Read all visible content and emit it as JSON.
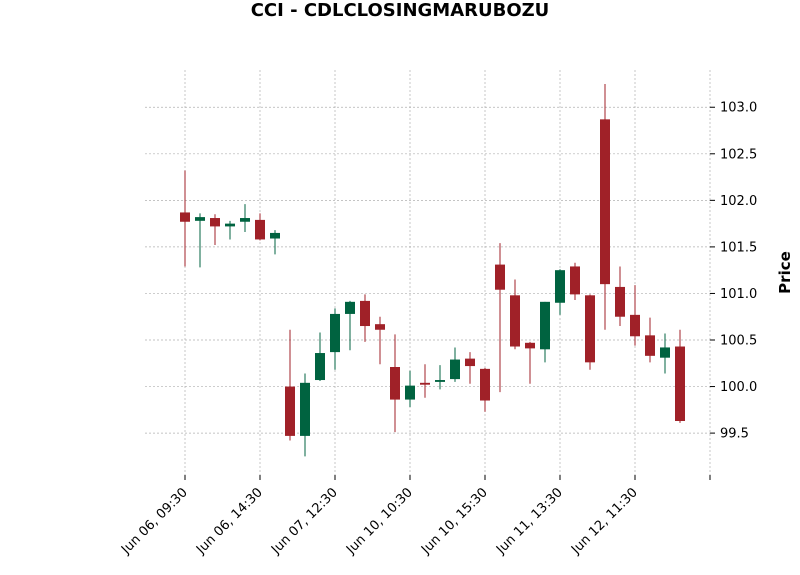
{
  "chart_data": {
    "type": "candlestick",
    "title": "CCI - CDLCLOSINGMARUBOZU",
    "xlabel": "",
    "ylabel": "Price",
    "ylim": [
      99.05,
      103.4
    ],
    "yticks": [
      99.5,
      100.0,
      100.5,
      101.0,
      101.5,
      102.0,
      102.5,
      103.0
    ],
    "ytick_labels": [
      "99.5",
      "100.0",
      "100.5",
      "101.0",
      "101.5",
      "102.0",
      "102.5",
      "103.0"
    ],
    "xtick_positions": [
      0,
      5,
      10,
      15,
      20,
      25,
      30,
      35
    ],
    "xtick_labels": [
      "Jun 06, 09:30",
      "Jun 06, 14:30",
      "Jun 07, 12:30",
      "Jun 10, 10:30",
      "Jun 10, 15:30",
      "Jun 11, 13:30",
      "Jun 12, 11:30",
      ""
    ],
    "grid": true,
    "colors": {
      "up": "#006340",
      "down": "#a02128",
      "grid": "#b0b0b0"
    },
    "candles": [
      {
        "open": 101.87,
        "high": 102.32,
        "low": 101.29,
        "close": 101.77
      },
      {
        "open": 101.78,
        "high": 101.86,
        "low": 101.28,
        "close": 101.82
      },
      {
        "open": 101.81,
        "high": 101.85,
        "low": 101.52,
        "close": 101.72
      },
      {
        "open": 101.72,
        "high": 101.78,
        "low": 101.58,
        "close": 101.75
      },
      {
        "open": 101.77,
        "high": 101.96,
        "low": 101.66,
        "close": 101.81
      },
      {
        "open": 101.79,
        "high": 101.86,
        "low": 101.57,
        "close": 101.58
      },
      {
        "open": 101.59,
        "high": 101.68,
        "low": 101.42,
        "close": 101.65
      },
      {
        "open": 100.0,
        "high": 100.61,
        "low": 99.42,
        "close": 99.47
      },
      {
        "open": 99.47,
        "high": 100.14,
        "low": 99.25,
        "close": 100.04
      },
      {
        "open": 100.07,
        "high": 100.58,
        "low": 100.06,
        "close": 100.36
      },
      {
        "open": 100.37,
        "high": 100.84,
        "low": 100.18,
        "close": 100.78
      },
      {
        "open": 100.78,
        "high": 100.92,
        "low": 100.39,
        "close": 100.91
      },
      {
        "open": 100.92,
        "high": 100.99,
        "low": 100.48,
        "close": 100.65
      },
      {
        "open": 100.67,
        "high": 100.75,
        "low": 100.24,
        "close": 100.61
      },
      {
        "open": 100.21,
        "high": 100.56,
        "low": 99.51,
        "close": 99.86
      },
      {
        "open": 99.86,
        "high": 100.17,
        "low": 99.78,
        "close": 100.01
      },
      {
        "open": 100.04,
        "high": 100.24,
        "low": 99.88,
        "close": 100.02
      },
      {
        "open": 100.05,
        "high": 100.23,
        "low": 99.97,
        "close": 100.07
      },
      {
        "open": 100.08,
        "high": 100.42,
        "low": 100.05,
        "close": 100.29
      },
      {
        "open": 100.3,
        "high": 100.37,
        "low": 100.03,
        "close": 100.22
      },
      {
        "open": 100.19,
        "high": 100.2,
        "low": 99.73,
        "close": 99.85
      },
      {
        "open": 101.31,
        "high": 101.54,
        "low": 99.94,
        "close": 101.04
      },
      {
        "open": 100.98,
        "high": 101.15,
        "low": 100.4,
        "close": 100.43
      },
      {
        "open": 100.47,
        "high": 100.48,
        "low": 100.03,
        "close": 100.41
      },
      {
        "open": 100.4,
        "high": 100.91,
        "low": 100.26,
        "close": 100.91
      },
      {
        "open": 100.9,
        "high": 101.26,
        "low": 100.77,
        "close": 101.25
      },
      {
        "open": 101.29,
        "high": 101.33,
        "low": 100.93,
        "close": 100.99
      },
      {
        "open": 100.98,
        "high": 100.99,
        "low": 100.18,
        "close": 100.26
      },
      {
        "open": 102.87,
        "high": 103.25,
        "low": 100.61,
        "close": 101.1
      },
      {
        "open": 101.07,
        "high": 101.29,
        "low": 100.65,
        "close": 100.75
      },
      {
        "open": 100.77,
        "high": 101.09,
        "low": 100.44,
        "close": 100.54
      },
      {
        "open": 100.55,
        "high": 100.74,
        "low": 100.26,
        "close": 100.33
      },
      {
        "open": 100.31,
        "high": 100.57,
        "low": 100.14,
        "close": 100.42
      },
      {
        "open": 100.43,
        "high": 100.61,
        "low": 99.61,
        "close": 99.63
      }
    ]
  }
}
